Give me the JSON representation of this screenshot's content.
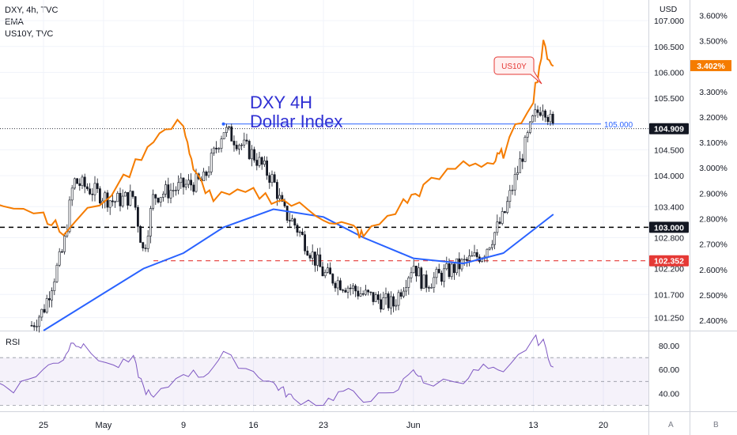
{
  "legend": {
    "line1": "DXY, 4h, TVC",
    "line2": "EMA",
    "line3": "US10Y, TVC"
  },
  "annotation": {
    "title_line1": "DXY 4H",
    "title_line2": "Dollar Index",
    "callout": "US10Y"
  },
  "axis": {
    "currency": "USD",
    "corner_a": "A",
    "corner_b": "B"
  },
  "colors": {
    "candle": "#131722",
    "ema": "#2962ff",
    "us10y": "#f57c00",
    "rsi": "#7e57c2",
    "support": "#000000",
    "low_line": "#e53935",
    "level_line": "#2962ff",
    "annotation_text": "#2f2fd3"
  },
  "chart_data": [
    {
      "type": "candlestick",
      "series": [
        {
          "name": "DXY, 4h, TVC",
          "points": [
            {
              "x": "Apr 25",
              "close": 101.4
            },
            {
              "x": "Apr 27",
              "close": 102.6
            },
            {
              "x": "Apr 28",
              "close": 103.9
            },
            {
              "x": "May 2",
              "close": 103.5
            },
            {
              "x": "May 4",
              "close": 103.6
            },
            {
              "x": "May 5",
              "close": 102.5
            },
            {
              "x": "May 6",
              "close": 103.6
            },
            {
              "x": "May 9",
              "close": 103.8
            },
            {
              "x": "May 11",
              "close": 103.9
            },
            {
              "x": "May 13",
              "close": 104.9
            },
            {
              "x": "May 16",
              "close": 104.4
            },
            {
              "x": "May 18",
              "close": 103.9
            },
            {
              "x": "May 19",
              "close": 103.3
            },
            {
              "x": "May 20",
              "close": 103.1
            },
            {
              "x": "May 23",
              "close": 102.1
            },
            {
              "x": "May 25",
              "close": 101.9
            },
            {
              "x": "May 27",
              "close": 101.7
            },
            {
              "x": "May 30",
              "close": 101.5
            },
            {
              "x": "Jun 1",
              "close": 102.3
            },
            {
              "x": "Jun 2",
              "close": 101.9
            },
            {
              "x": "Jun 6",
              "close": 102.3
            },
            {
              "x": "Jun 8",
              "close": 102.5
            },
            {
              "x": "Jun 10",
              "close": 103.2
            },
            {
              "x": "Jun 13",
              "close": 105.1
            },
            {
              "x": "Jun 14",
              "close": 105.4
            },
            {
              "x": "Jun 15",
              "close": 104.9
            }
          ]
        },
        {
          "name": "EMA",
          "points": [
            {
              "x": "Apr 25",
              "y": 101.0
            },
            {
              "x": "May 5",
              "y": 102.2
            },
            {
              "x": "May 9",
              "y": 102.5
            },
            {
              "x": "May 13",
              "y": 103.0
            },
            {
              "x": "May 18",
              "y": 103.35
            },
            {
              "x": "May 23",
              "y": 103.2
            },
            {
              "x": "May 27",
              "y": 102.8
            },
            {
              "x": "Jun 1",
              "y": 102.4
            },
            {
              "x": "Jun 6",
              "y": 102.3
            },
            {
              "x": "Jun 10",
              "y": 102.5
            },
            {
              "x": "Jun 15",
              "y": 103.25
            }
          ]
        }
      ],
      "us10y": {
        "name": "US10Y",
        "current": "3.402%",
        "points": [
          {
            "x": "Apr 20",
            "y": 2.88
          },
          {
            "x": "Apr 25",
            "y": 2.82
          },
          {
            "x": "Apr 27",
            "y": 2.74
          },
          {
            "x": "May 3",
            "y": 2.95
          },
          {
            "x": "May 6",
            "y": 3.12
          },
          {
            "x": "May 9",
            "y": 3.18
          },
          {
            "x": "May 10",
            "y": 2.98
          },
          {
            "x": "May 12",
            "y": 2.88
          },
          {
            "x": "May 16",
            "y": 2.9
          },
          {
            "x": "May 19",
            "y": 2.87
          },
          {
            "x": "May 23",
            "y": 2.81
          },
          {
            "x": "May 26",
            "y": 2.76
          },
          {
            "x": "May 27",
            "y": 2.73
          },
          {
            "x": "May 31",
            "y": 2.86
          },
          {
            "x": "Jun 2",
            "y": 2.92
          },
          {
            "x": "Jun 6",
            "y": 3.02
          },
          {
            "x": "Jun 9",
            "y": 3.02
          },
          {
            "x": "Jun 10",
            "y": 3.06
          },
          {
            "x": "Jun 13",
            "y": 3.28
          },
          {
            "x": "Jun 14",
            "y": 3.48
          },
          {
            "x": "Jun 15",
            "y": 3.4
          }
        ]
      },
      "levels": [
        {
          "label": "105.000",
          "value": 105.0,
          "style": "solid-blue"
        },
        {
          "label": "104.909",
          "value": 104.909,
          "style": "last-price"
        },
        {
          "label": "103.000",
          "value": 103.0,
          "style": "dashed-black"
        },
        {
          "label": "102.352",
          "value": 102.352,
          "style": "dashed-red"
        }
      ],
      "y_ticks": [
        "107.000",
        "106.500",
        "106.000",
        "105.500",
        "104.500",
        "104.000",
        "103.400",
        "102.800",
        "102.200",
        "101.700",
        "101.250"
      ],
      "y_tick_values": [
        107.0,
        106.5,
        106.0,
        105.5,
        104.5,
        104.0,
        103.4,
        102.8,
        102.2,
        101.7,
        101.25
      ],
      "y2_ticks": [
        "3.600%",
        "3.500%",
        "3.300%",
        "3.200%",
        "3.100%",
        "3.000%",
        "2.900%",
        "2.800%",
        "2.700%",
        "2.600%",
        "2.500%",
        "2.400%"
      ],
      "y2_tick_values": [
        3.6,
        3.5,
        3.3,
        3.2,
        3.1,
        3.0,
        2.9,
        2.8,
        2.7,
        2.6,
        2.5,
        2.4
      ],
      "x_ticks": [
        "25",
        "May",
        "9",
        "16",
        "23",
        "Jun",
        "13",
        "20"
      ],
      "y_range": [
        101.0,
        107.4
      ],
      "y2_range": [
        2.36,
        3.66
      ]
    },
    {
      "type": "line",
      "panel": "RSI",
      "title": "RSI",
      "y_ticks": [
        "80.00",
        "60.00",
        "40.00"
      ],
      "y_tick_values": [
        80,
        60,
        40
      ],
      "y_range": [
        25,
        92
      ],
      "series": [
        {
          "points": [
            {
              "x": "Apr 20",
              "y": 50
            },
            {
              "x": "Apr 22",
              "y": 44
            },
            {
              "x": "Apr 25",
              "y": 60
            },
            {
              "x": "Apr 27",
              "y": 70
            },
            {
              "x": "Apr 28",
              "y": 85
            },
            {
              "x": "Apr 29",
              "y": 78
            },
            {
              "x": "May 2",
              "y": 62
            },
            {
              "x": "May 4",
              "y": 68
            },
            {
              "x": "May 5",
              "y": 45
            },
            {
              "x": "May 6",
              "y": 35
            },
            {
              "x": "May 9",
              "y": 58
            },
            {
              "x": "May 11",
              "y": 55
            },
            {
              "x": "May 13",
              "y": 72
            },
            {
              "x": "May 16",
              "y": 58
            },
            {
              "x": "May 18",
              "y": 48
            },
            {
              "x": "May 19",
              "y": 42
            },
            {
              "x": "May 20",
              "y": 35
            },
            {
              "x": "May 23",
              "y": 32
            },
            {
              "x": "May 25",
              "y": 42
            },
            {
              "x": "May 27",
              "y": 36
            },
            {
              "x": "May 30",
              "y": 38
            },
            {
              "x": "Jun 1",
              "y": 62
            },
            {
              "x": "Jun 2",
              "y": 48
            },
            {
              "x": "Jun 6",
              "y": 52
            },
            {
              "x": "Jun 8",
              "y": 62
            },
            {
              "x": "Jun 10",
              "y": 55
            },
            {
              "x": "Jun 13",
              "y": 86
            },
            {
              "x": "Jun 14",
              "y": 82
            },
            {
              "x": "Jun 15",
              "y": 62
            }
          ]
        }
      ]
    }
  ]
}
